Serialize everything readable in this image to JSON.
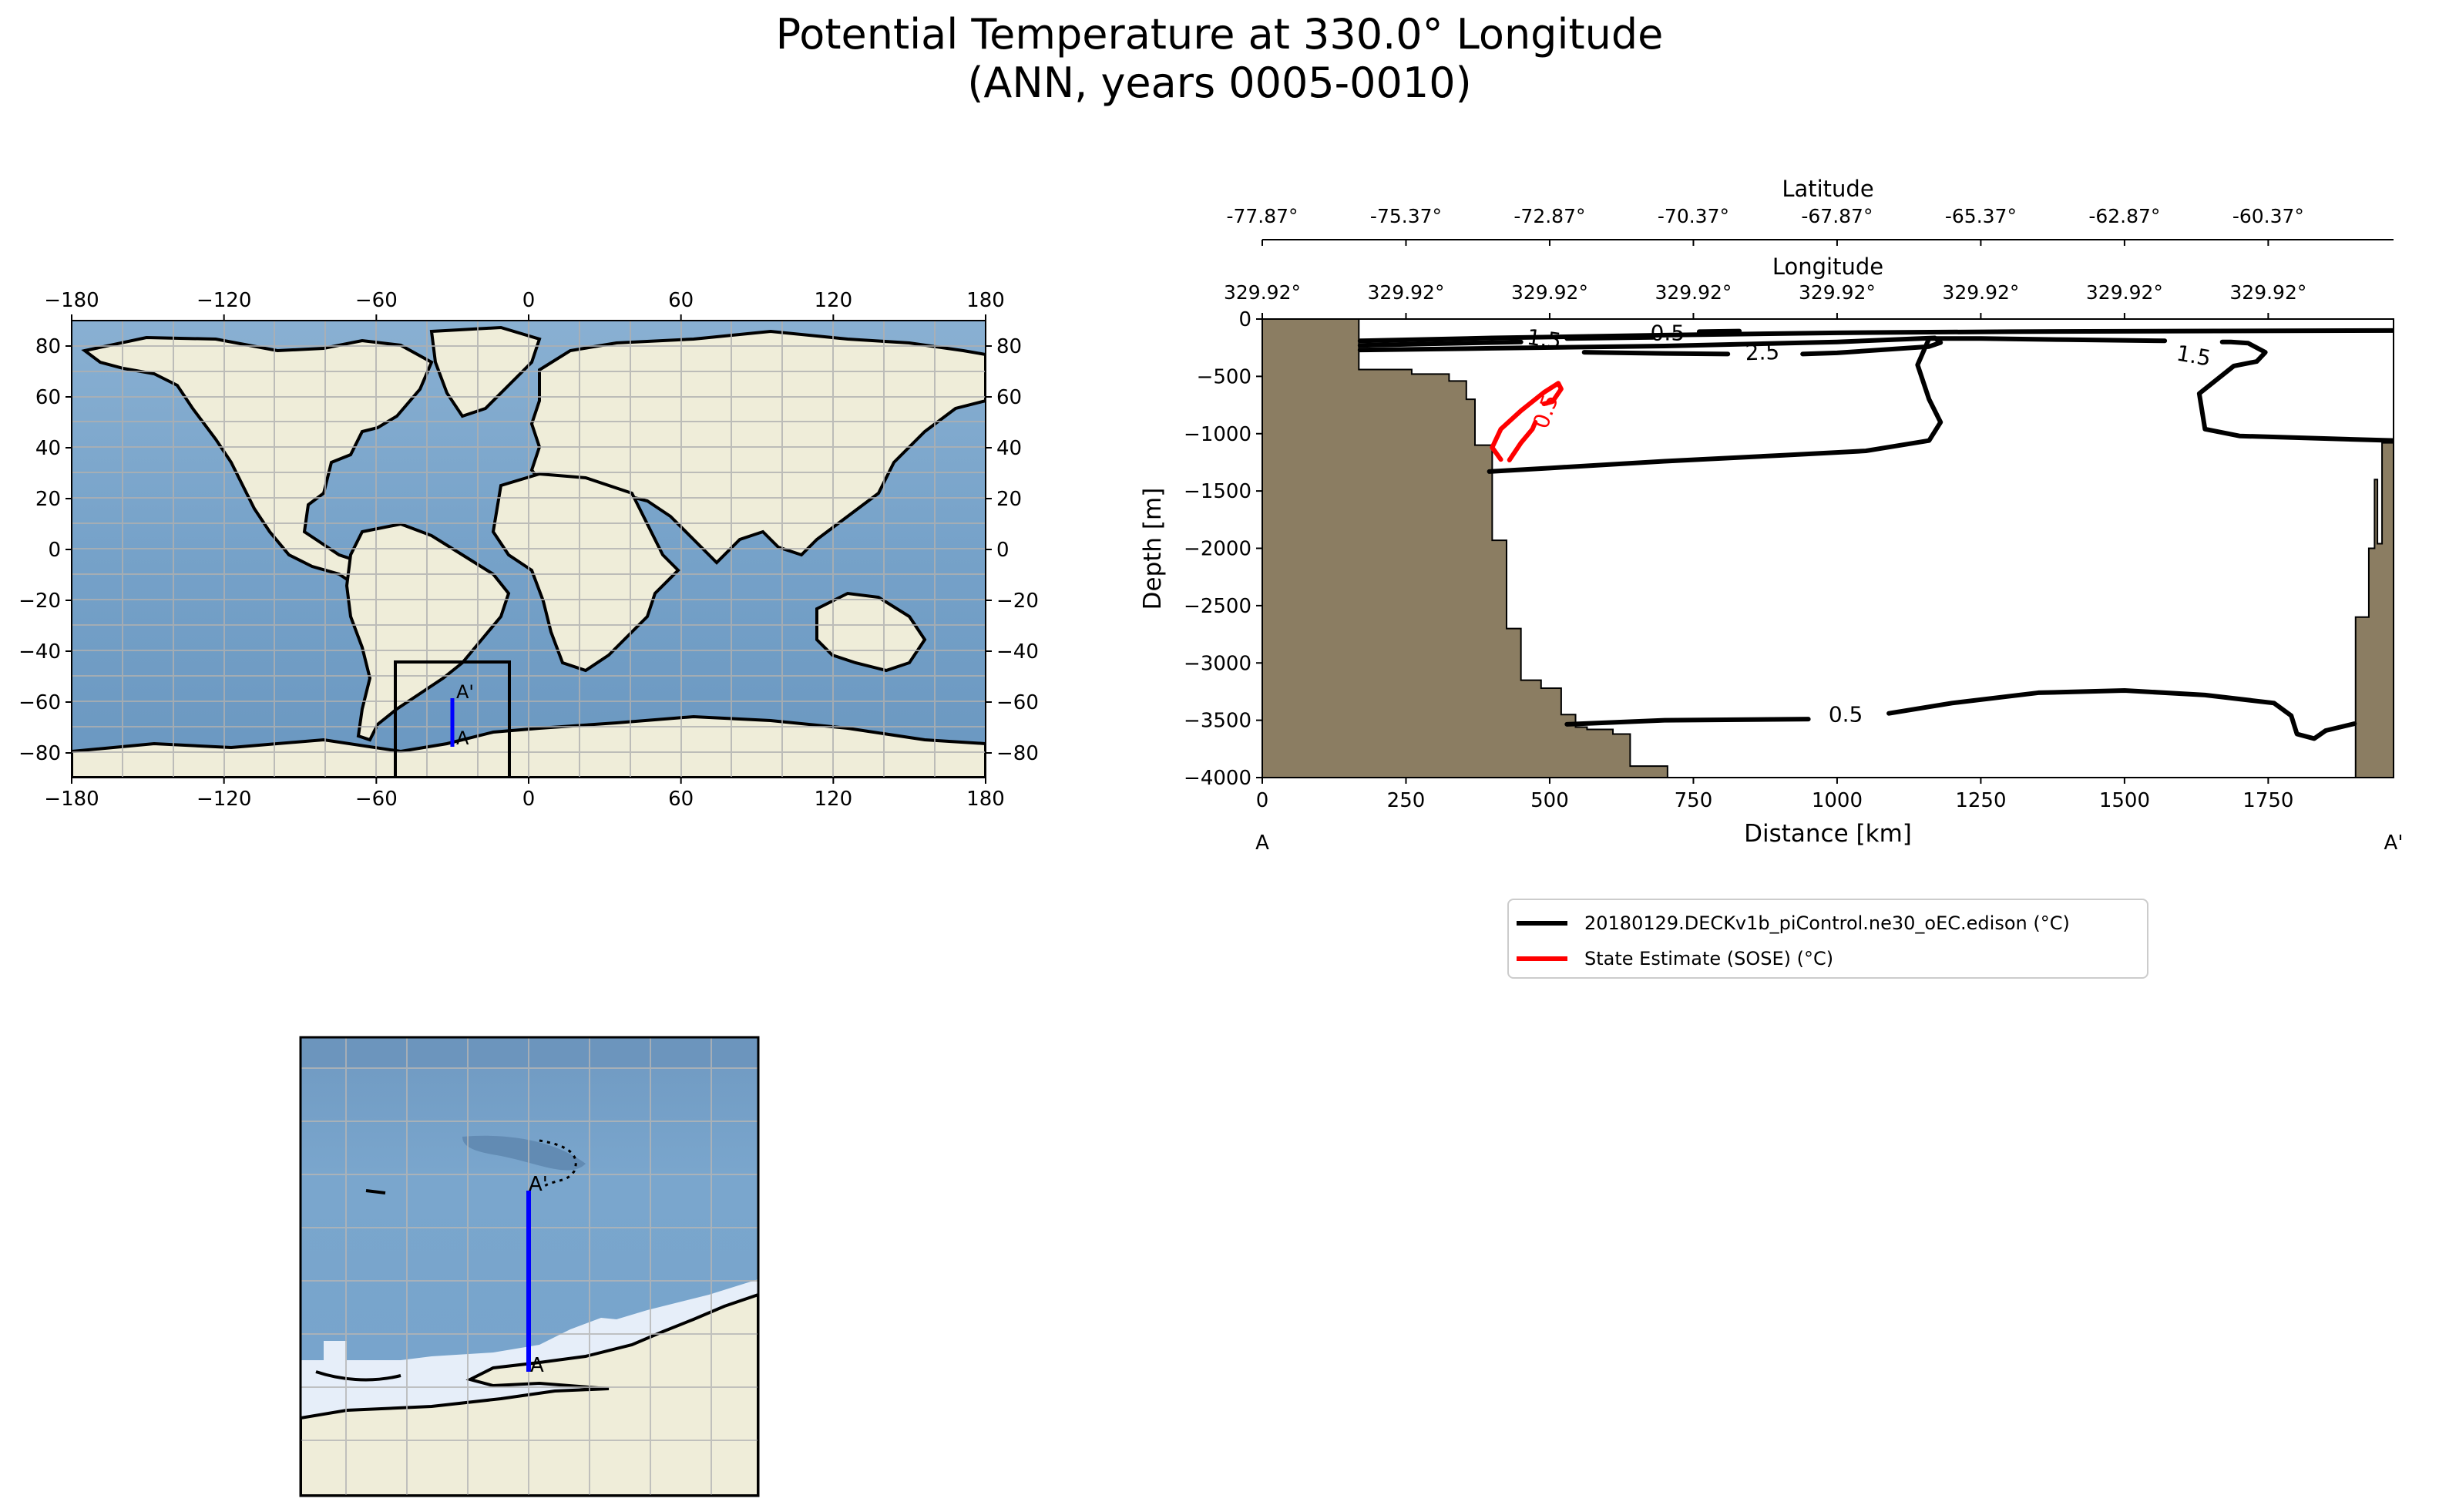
{
  "title_line1": "Potential Temperature at 330.0° Longitude",
  "title_line2": "(ANN, years 0005-0010)",
  "colors": {
    "land": "#efedd9",
    "ocean": "#7ea6c9",
    "ocean_dark": "#5f8bb3",
    "bathymetry_fill": "#8b7d62",
    "transect": "#0000ff",
    "model_contour": "#000000",
    "sose_contour": "#ff0000",
    "ice": "#e6eef9"
  },
  "world_map": {
    "x_ticks": [
      "−180",
      "−120",
      "−60",
      "0",
      "60",
      "120",
      "180"
    ],
    "y_ticks": [
      "80",
      "60",
      "40",
      "20",
      "0",
      "−20",
      "−40",
      "−60",
      "−80"
    ],
    "point_A": "A",
    "point_Aprime": "A'"
  },
  "inset_map": {
    "point_A": "A",
    "point_Aprime": "A'"
  },
  "transect": {
    "latitude_label": "Latitude",
    "latitude_ticks": [
      "-77.87°",
      "-75.37°",
      "-72.87°",
      "-70.37°",
      "-67.87°",
      "-65.37°",
      "-62.87°",
      "-60.37°"
    ],
    "longitude_label": "Longitude",
    "longitude_ticks": [
      "329.92°",
      "329.92°",
      "329.92°",
      "329.92°",
      "329.92°",
      "329.92°",
      "329.92°",
      "329.92°"
    ],
    "start_label": "A",
    "end_label": "A'"
  },
  "chart_data": {
    "type": "line",
    "title": "Potential Temperature at 330.0° Longitude (ANN, years 0005-0010)",
    "xlabel": "Distance [km]",
    "ylabel": "Depth [m]",
    "xlim": [
      0,
      1968
    ],
    "ylim": [
      -4000,
      0
    ],
    "x_ticks": [
      0,
      250,
      500,
      750,
      1000,
      1250,
      1500,
      1750
    ],
    "y_ticks": [
      0,
      -500,
      -1000,
      -1500,
      -2000,
      -2500,
      -3000,
      -3500,
      -4000
    ],
    "legend": [
      {
        "label": "20180129.DECKv1b_piControl.ne30_oEC.edison (°C)",
        "color": "#000000"
      },
      {
        "label": "State Estimate (SOSE) (°C)",
        "color": "#ff0000"
      }
    ],
    "contour_labels": [
      {
        "text": "1.5",
        "x": 490,
        "y": -185,
        "color": "#000000",
        "rotate": 8
      },
      {
        "text": "0.5",
        "x": 705,
        "y": -130,
        "color": "#000000",
        "rotate": 0
      },
      {
        "text": "2.5",
        "x": 870,
        "y": -300,
        "color": "#000000",
        "rotate": -2
      },
      {
        "text": "1.5",
        "x": 1620,
        "y": -330,
        "color": "#000000",
        "rotate": 10
      },
      {
        "text": "0.5",
        "x": 1015,
        "y": -3460,
        "color": "#000000",
        "rotate": 0
      },
      {
        "text": "0.5",
        "x": 495,
        "y": -810,
        "color": "#ff0000",
        "rotate": -70
      }
    ],
    "series": [
      {
        "name": "20180129.DECKv1b_piControl.ne30_oEC.edison (°C)",
        "color": "#000000",
        "segments": [
          {
            "x": [
              170,
              400,
              700,
              1000,
              1300,
              1600,
              1968
            ],
            "y": [
              -190,
              -165,
              -140,
              -120,
              -110,
              -105,
              -100
            ]
          },
          {
            "x": [
              170,
              300,
              450
            ],
            "y": [
              -230,
              -215,
              -200
            ]
          },
          {
            "x": [
              530,
              680
            ],
            "y": [
              -170,
              -160
            ]
          },
          {
            "x": [
              760,
              830
            ],
            "y": [
              -110,
              -105
            ]
          },
          {
            "x": [
              170,
              400,
              700,
              1000,
              1170,
              1180,
              1160,
              1000,
              940
            ],
            "y": [
              -270,
              -255,
              -235,
              -200,
              -165,
              -205,
              -240,
              -295,
              -305
            ]
          },
          {
            "x": [
              810,
              700,
              560
            ],
            "y": [
              -305,
              -300,
              -290
            ]
          },
          {
            "x": [
              1968,
              1700,
              1640,
              1630,
              1690,
              1730,
              1745,
              1715,
              1685,
              1670
            ],
            "y": [
              -1060,
              -1020,
              -960,
              -650,
              -410,
              -370,
              -290,
              -210,
              -200,
              -200
            ]
          },
          {
            "x": [
              1570,
              1400,
              1250,
              1160
            ],
            "y": [
              -190,
              -180,
              -170,
              -170
            ]
          },
          {
            "x": [
              1160,
              1140,
              1160,
              1180,
              1160,
              1050,
              900,
              700,
              500,
              395
            ],
            "y": [
              -170,
              -400,
              -700,
              -900,
              -1060,
              -1150,
              -1190,
              -1240,
              -1300,
              -1330
            ]
          },
          {
            "x": [
              530,
              700,
              950
            ],
            "y": [
              -3535,
              -3500,
              -3490
            ]
          },
          {
            "x": [
              1090,
              1200,
              1350,
              1500,
              1640,
              1760,
              1790,
              1800,
              1830,
              1850,
              1900
            ],
            "y": [
              -3440,
              -3350,
              -3260,
              -3240,
              -3280,
              -3350,
              -3460,
              -3620,
              -3660,
              -3590,
              -3530
            ]
          }
        ]
      },
      {
        "name": "State Estimate (SOSE) (°C)",
        "color": "#ff0000",
        "segments": [
          {
            "x": [
              415,
              400,
              415,
              450,
              490,
              515,
              520,
              505,
              490
            ],
            "y": [
              -1225,
              -1120,
              -960,
              -800,
              -640,
              -560,
              -610,
              -720,
              -740
            ]
          },
          {
            "x": [
              475,
              470,
              450,
              430
            ],
            "y": [
              -900,
              -960,
              -1080,
              -1230
            ]
          }
        ]
      }
    ],
    "bathymetry": {
      "x": [
        0,
        168,
        168,
        260,
        260,
        325,
        325,
        355,
        355,
        370,
        370,
        400,
        400,
        425,
        425,
        450,
        450,
        485,
        485,
        520,
        520,
        545,
        545,
        565,
        565,
        610,
        610,
        640,
        640,
        705,
        705
      ],
      "y": [
        0,
        0,
        -440,
        -440,
        -480,
        -480,
        -540,
        -540,
        -700,
        -700,
        -1100,
        -1100,
        -1930,
        -1930,
        -2700,
        -2700,
        -3150,
        -3150,
        -3220,
        -3220,
        -3450,
        -3450,
        -3560,
        -3560,
        -3580,
        -3580,
        -3620,
        -3620,
        -3900,
        -3900,
        -4000
      ],
      "right_x": [
        1968,
        1968,
        1948,
        1948,
        1940,
        1940,
        1935,
        1935,
        1925,
        1925,
        1902,
        1902
      ],
      "right_y": [
        -4000,
        -1080,
        -1080,
        -1960,
        -1960,
        -1400,
        -1400,
        -2000,
        -2000,
        -2600,
        -2600,
        -4000
      ]
    }
  }
}
